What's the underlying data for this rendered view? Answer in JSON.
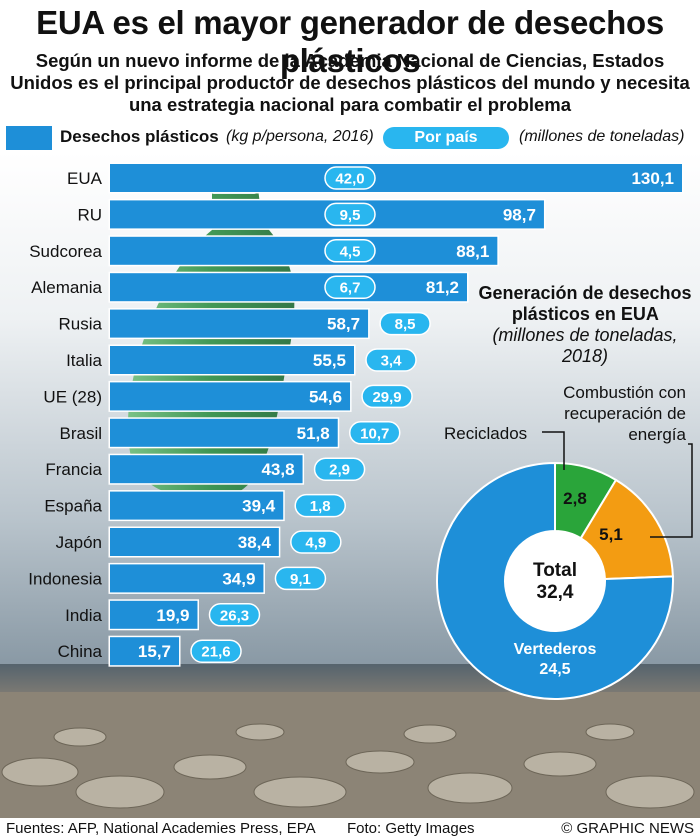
{
  "title": "EUA es el mayor generador de desechos plásticos",
  "subtitle": "Según un nuevo informe de la Academia Nacional de Ciencias, Estados Unidos es el principal productor de desechos plásticos del mundo y necesita una estrategia nacional para combatir el problema",
  "legend": {
    "bar_label": "Desechos plásticos",
    "bar_unit": "(kg p/persona, 2016)",
    "pill_label": "Por país",
    "pill_unit": "(millones de toneladas)"
  },
  "donut_title": {
    "main": "Generación de desechos plásticos en EUA",
    "unit": "(millones de toneladas, 2018)"
  },
  "footer": {
    "sources": "Fuentes: AFP, National Academies Press, EPA",
    "photo": "Foto: Getty Images",
    "credit": "© GRAPHIC NEWS"
  },
  "colors": {
    "bar": "#1e8fd8",
    "pill": "#29b6ef",
    "recycled": "#2aa53a",
    "combustion": "#f39c12",
    "landfill": "#1e8fd8"
  },
  "chart_data": [
    {
      "type": "bar",
      "orientation": "horizontal",
      "categories": [
        "EUA",
        "RU",
        "Sudcorea",
        "Alemania",
        "Rusia",
        "Italia",
        "UE (28)",
        "Brasil",
        "Francia",
        "España",
        "Japón",
        "Indonesia",
        "India",
        "China"
      ],
      "series": [
        {
          "name": "Desechos plásticos (kg p/persona, 2016)",
          "values": [
            130.1,
            98.7,
            88.1,
            81.2,
            58.7,
            55.5,
            54.6,
            51.8,
            43.8,
            39.4,
            38.4,
            34.9,
            19.9,
            15.7
          ]
        },
        {
          "name": "Por país (millones de toneladas)",
          "values": [
            42.0,
            9.5,
            4.5,
            6.7,
            8.5,
            3.4,
            29.9,
            10.7,
            2.9,
            1.8,
            4.9,
            9.1,
            26.3,
            21.6
          ]
        }
      ],
      "value_labels": [
        "130,1",
        "98,7",
        "88,1",
        "81,2",
        "58,7",
        "55,5",
        "54,6",
        "51,8",
        "43,8",
        "39,4",
        "38,4",
        "34,9",
        "19,9",
        "15,7"
      ],
      "pill_labels": [
        "42,0",
        "9,5",
        "4,5",
        "6,7",
        "8,5",
        "3,4",
        "29,9",
        "10,7",
        "2,9",
        "1,8",
        "4,9",
        "9,1",
        "26,3",
        "21,6"
      ],
      "xlim": [
        0,
        130.1
      ]
    },
    {
      "type": "pie",
      "donut": true,
      "slices": [
        {
          "name": "Reciclados",
          "value": 2.8,
          "label": "2,8"
        },
        {
          "name": "Combustión con recuperación de energía",
          "value": 5.1,
          "label": "5,1"
        },
        {
          "name": "Vertederos",
          "value": 24.5,
          "label": "24,5"
        }
      ],
      "center_label": "Total",
      "center_value": "32,4"
    }
  ]
}
